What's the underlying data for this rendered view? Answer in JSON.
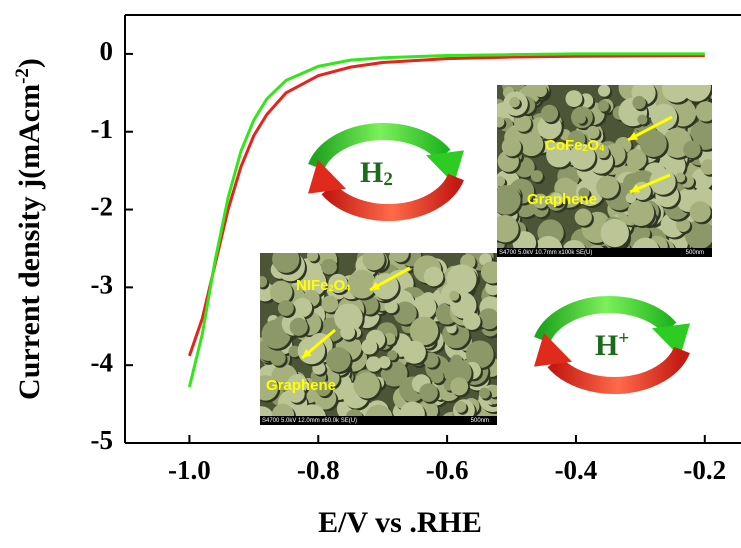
{
  "chart_data": {
    "type": "line",
    "x_label": "E/V vs .RHE",
    "y_label": {
      "parts": [
        {
          "text": "Current density j(mAcm"
        },
        {
          "sup": "-2"
        },
        {
          "text": ")"
        }
      ]
    },
    "x": [
      -1.0,
      -0.98,
      -0.96,
      -0.94,
      -0.92,
      -0.9,
      -0.88,
      -0.85,
      -0.8,
      -0.75,
      -0.7,
      -0.6,
      -0.5,
      -0.4,
      -0.2
    ],
    "series": [
      {
        "color": "#e8221c",
        "values": [
          -3.88,
          -3.4,
          -2.7,
          -2.0,
          -1.45,
          -1.05,
          -0.78,
          -0.5,
          -0.28,
          -0.17,
          -0.11,
          -0.06,
          -0.04,
          -0.03,
          -0.02
        ]
      },
      {
        "color": "#33e61a",
        "values": [
          -4.28,
          -3.6,
          -2.65,
          -1.85,
          -1.25,
          -0.85,
          -0.58,
          -0.34,
          -0.16,
          -0.08,
          -0.05,
          -0.02,
          -0.01,
          0,
          0
        ]
      }
    ],
    "xlim": [
      -1.1,
      -0.15
    ],
    "ylim": [
      -5,
      0.5
    ],
    "xticks": [
      {
        "value": -1,
        "label": "-1.0"
      },
      -0.8,
      -0.6,
      -0.4,
      -0.2
    ],
    "yticks": [
      0,
      -1,
      -2,
      -3,
      -4,
      -5
    ],
    "annotations": [
      {
        "parts": [
          {
            "text": "H"
          },
          {
            "sub": "2"
          }
        ]
      },
      {
        "parts": [
          {
            "text": "H"
          },
          {
            "sup": "+"
          }
        ]
      },
      {
        "parts": [
          {
            "text": "CoFe"
          },
          {
            "sub": "2"
          },
          {
            "text": "O"
          },
          {
            "sub": "4"
          }
        ]
      },
      {
        "parts": [
          {
            "text": "Graphene"
          }
        ]
      },
      {
        "parts": [
          {
            "text": "NIFe"
          },
          {
            "sub": "2"
          },
          {
            "text": "O"
          },
          {
            "sub": "4"
          }
        ]
      },
      {
        "parts": [
          {
            "text": "Graphene"
          }
        ]
      }
    ],
    "image_captions": [
      {
        "info": "S4700 5.0kV 10.7mm x100k SE(U)",
        "scale": "500nm"
      },
      {
        "info": "S4700 5.0kV 12.0mm x60.0k SE(U)",
        "scale": "500nm"
      }
    ]
  }
}
